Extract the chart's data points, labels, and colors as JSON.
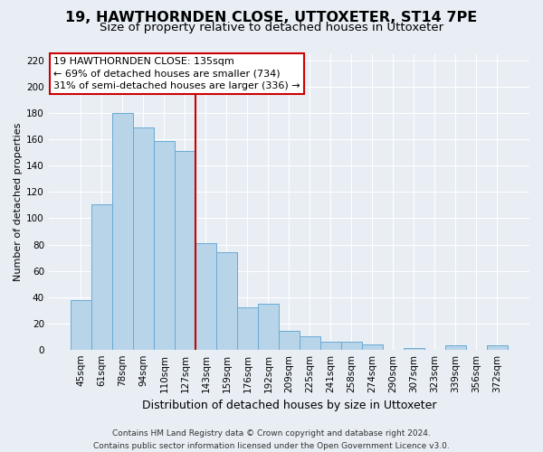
{
  "title": "19, HAWTHORNDEN CLOSE, UTTOXETER, ST14 7PE",
  "subtitle": "Size of property relative to detached houses in Uttoxeter",
  "xlabel": "Distribution of detached houses by size in Uttoxeter",
  "ylabel": "Number of detached properties",
  "footer_line1": "Contains HM Land Registry data © Crown copyright and database right 2024.",
  "footer_line2": "Contains public sector information licensed under the Open Government Licence v3.0.",
  "categories": [
    "45sqm",
    "61sqm",
    "78sqm",
    "94sqm",
    "110sqm",
    "127sqm",
    "143sqm",
    "159sqm",
    "176sqm",
    "192sqm",
    "209sqm",
    "225sqm",
    "241sqm",
    "258sqm",
    "274sqm",
    "290sqm",
    "307sqm",
    "323sqm",
    "339sqm",
    "356sqm",
    "372sqm"
  ],
  "values": [
    38,
    111,
    180,
    169,
    159,
    151,
    81,
    74,
    32,
    35,
    14,
    10,
    6,
    6,
    4,
    0,
    1,
    0,
    3,
    0,
    3
  ],
  "bar_color": "#b8d4e8",
  "bar_edgecolor": "#6aaad4",
  "vline_x": 6,
  "vline_color": "#cc0000",
  "annotation_line1": "19 HAWTHORNDEN CLOSE: 135sqm",
  "annotation_line2": "← 69% of detached houses are smaller (734)",
  "annotation_line3": "31% of semi-detached houses are larger (336) →",
  "annotation_box_edgecolor": "#cc0000",
  "annotation_box_facecolor": "#ffffff",
  "ylim": [
    0,
    225
  ],
  "yticks": [
    0,
    20,
    40,
    60,
    80,
    100,
    120,
    140,
    160,
    180,
    200,
    220
  ],
  "fig_facecolor": "#e8eef4",
  "plot_facecolor": "#e8eef4",
  "grid_color": "#ffffff",
  "title_fontsize": 11.5,
  "subtitle_fontsize": 9.5,
  "xlabel_fontsize": 9,
  "ylabel_fontsize": 8,
  "tick_fontsize": 7.5,
  "annotation_fontsize": 8,
  "footer_fontsize": 6.5
}
